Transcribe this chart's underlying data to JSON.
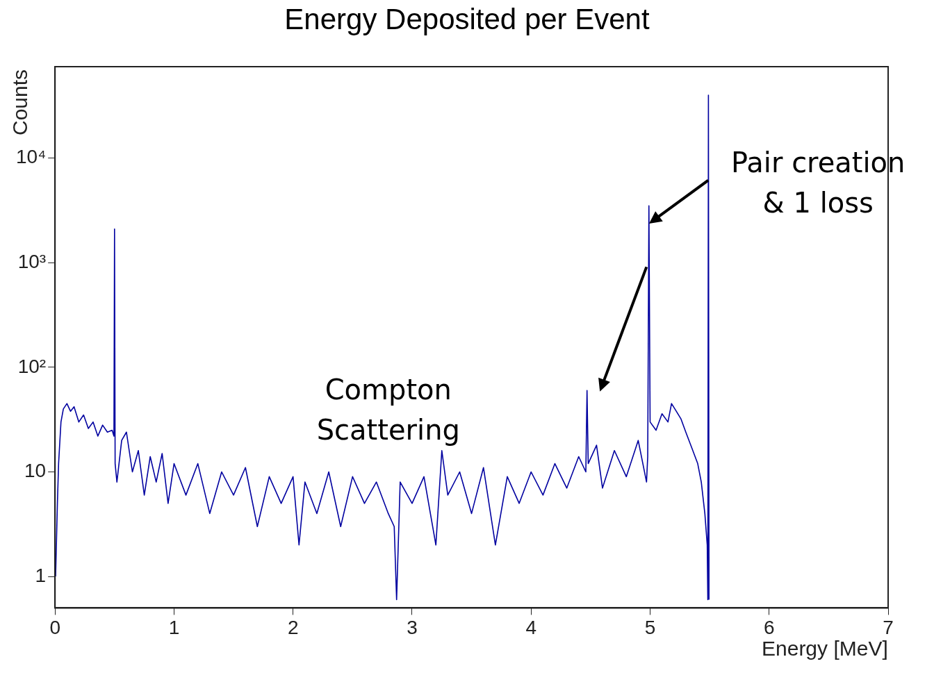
{
  "chart_data": {
    "type": "line",
    "title": "Energy Deposited per Event",
    "xlabel": "Energy [MeV]",
    "ylabel": "Counts",
    "annotations": [
      "Compton Scattering",
      "Pair creation & 1 loss"
    ],
    "log": "y",
    "grid": false,
    "legend": false,
    "marker": "none",
    "line_style": "solid",
    "xlim": [
      0,
      7
    ],
    "xticks": [
      0,
      1,
      2,
      3,
      4,
      5,
      6,
      7
    ],
    "ylim": [
      0.5,
      75000
    ],
    "yticks": [
      1,
      10,
      {
        "value": 100,
        "label": "10²"
      },
      {
        "value": 1000,
        "label": "10³"
      },
      {
        "value": 10000,
        "label": "10⁴"
      }
    ],
    "series": [
      {
        "color": "#0000a0",
        "x": [
          0.005,
          0.02,
          0.03,
          0.05,
          0.07,
          0.1,
          0.13,
          0.16,
          0.2,
          0.24,
          0.28,
          0.32,
          0.36,
          0.4,
          0.44,
          0.48,
          0.495,
          0.5,
          0.505,
          0.52,
          0.56,
          0.6,
          0.65,
          0.7,
          0.75,
          0.8,
          0.85,
          0.9,
          0.95,
          1.0,
          1.1,
          1.2,
          1.3,
          1.4,
          1.5,
          1.6,
          1.7,
          1.8,
          1.9,
          2.0,
          2.05,
          2.1,
          2.2,
          2.3,
          2.4,
          2.5,
          2.6,
          2.7,
          2.8,
          2.85,
          2.87,
          2.9,
          3.0,
          3.1,
          3.2,
          3.25,
          3.3,
          3.4,
          3.5,
          3.6,
          3.7,
          3.8,
          3.9,
          4.0,
          4.1,
          4.2,
          4.3,
          4.4,
          4.46,
          4.47,
          4.48,
          4.55,
          4.6,
          4.7,
          4.8,
          4.9,
          4.97,
          4.98,
          4.99,
          5.0,
          5.05,
          5.1,
          5.15,
          5.18,
          5.22,
          5.26,
          5.3,
          5.35,
          5.4,
          5.43,
          5.46,
          5.48,
          5.485,
          5.49,
          5.495
        ],
        "values": [
          1,
          5,
          12,
          30,
          40,
          45,
          38,
          42,
          30,
          35,
          26,
          30,
          22,
          28,
          24,
          25,
          22,
          2100,
          12,
          8,
          20,
          24,
          10,
          16,
          6,
          14,
          8,
          15,
          5,
          12,
          6,
          12,
          4,
          10,
          6,
          11,
          3,
          9,
          5,
          9,
          2,
          8,
          4,
          10,
          3,
          9,
          5,
          8,
          4,
          3,
          0.6,
          8,
          5,
          9,
          2,
          16,
          6,
          10,
          4,
          11,
          2,
          9,
          5,
          10,
          6,
          12,
          7,
          14,
          10,
          60,
          12,
          18,
          7,
          16,
          9,
          20,
          8,
          14,
          3500,
          30,
          25,
          36,
          30,
          45,
          38,
          32,
          24,
          17,
          12,
          8,
          4,
          2,
          0.6,
          40000,
          0.6
        ]
      }
    ]
  }
}
